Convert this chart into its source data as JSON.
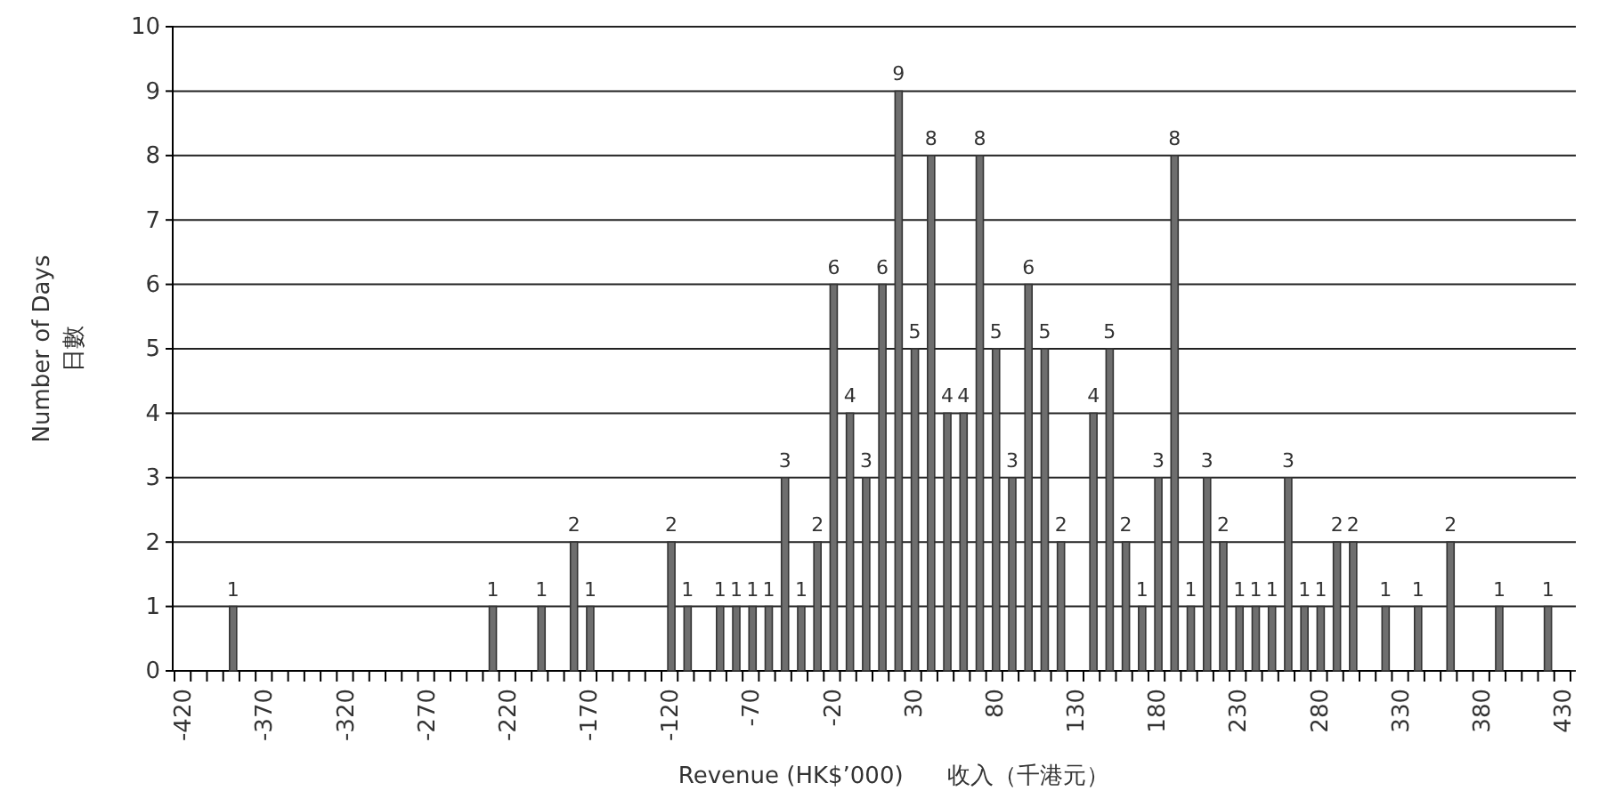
{
  "chart_data": {
    "type": "bar",
    "xlabel": "Revenue (HK$’000)      收入（千港元）",
    "ylabel": "Number of Days\n日數",
    "categories": [
      "-420",
      null,
      null,
      null,
      null,
      "-370",
      null,
      null,
      null,
      null,
      "-320",
      null,
      null,
      null,
      null,
      "-270",
      null,
      null,
      null,
      null,
      "-220",
      null,
      null,
      null,
      null,
      "-170",
      null,
      null,
      null,
      null,
      "-120",
      null,
      null,
      null,
      null,
      "-70",
      null,
      null,
      null,
      null,
      "-20",
      null,
      null,
      null,
      null,
      "30",
      null,
      null,
      null,
      null,
      "80",
      null,
      null,
      null,
      null,
      "130",
      null,
      null,
      null,
      null,
      "180",
      null,
      null,
      null,
      null,
      "230",
      null,
      null,
      null,
      null,
      "280",
      null,
      null,
      null,
      null,
      "330",
      null,
      null,
      null,
      null,
      "380",
      null,
      null,
      null,
      null,
      "430"
    ],
    "values": [
      null,
      null,
      null,
      1,
      null,
      null,
      null,
      null,
      null,
      null,
      null,
      null,
      null,
      null,
      null,
      null,
      null,
      null,
      null,
      1,
      null,
      null,
      1,
      null,
      2,
      1,
      null,
      null,
      null,
      null,
      2,
      1,
      null,
      1,
      1,
      1,
      1,
      3,
      1,
      2,
      6,
      4,
      3,
      6,
      9,
      5,
      8,
      4,
      4,
      8,
      5,
      3,
      6,
      5,
      2,
      null,
      4,
      5,
      2,
      1,
      3,
      8,
      1,
      3,
      2,
      1,
      1,
      1,
      3,
      1,
      1,
      2,
      2,
      null,
      1,
      null,
      1,
      null,
      2,
      null,
      null,
      1,
      null,
      null,
      1,
      null
    ],
    "color": "#6e6e6e",
    "ylim": [
      0,
      10
    ],
    "yticks": [
      0,
      1,
      2,
      3,
      4,
      5,
      6,
      7,
      8,
      9,
      10
    ],
    "grid": "y",
    "data_labels": true
  }
}
